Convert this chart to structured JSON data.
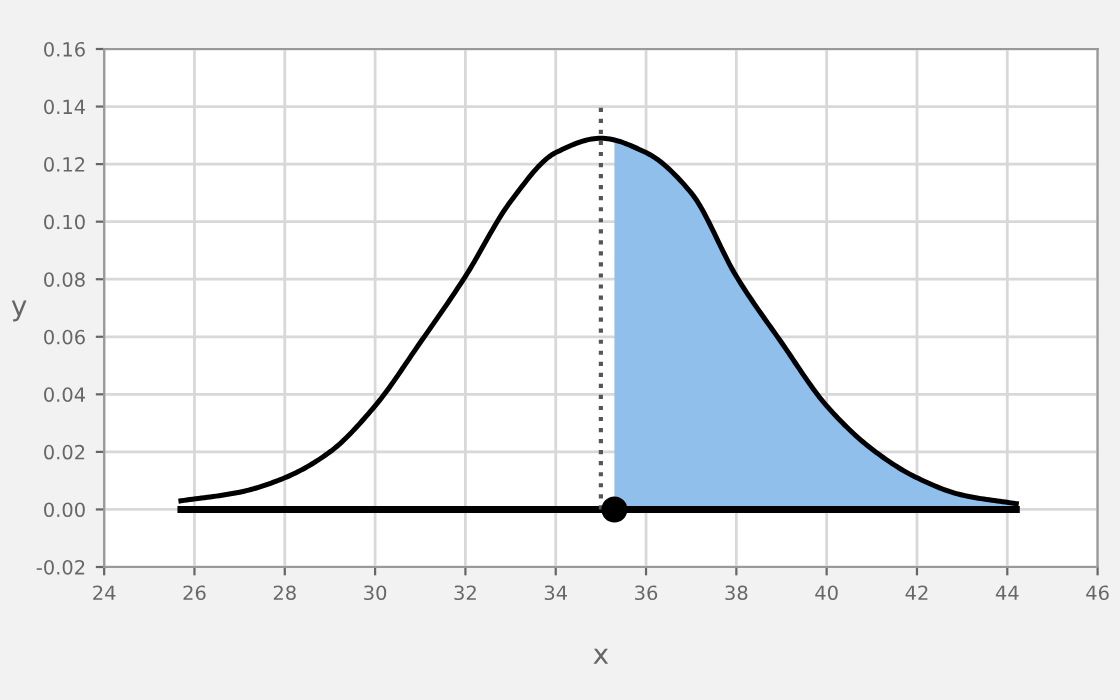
{
  "chart_data": {
    "type": "line",
    "xlabel": "x",
    "ylabel": "y",
    "xlim": [
      24,
      46
    ],
    "ylim": [
      -0.02,
      0.16
    ],
    "xticks": [
      24,
      26,
      28,
      30,
      32,
      34,
      36,
      38,
      40,
      42,
      44,
      46
    ],
    "yticks": [
      {
        "value": -0.02,
        "label": "-0.02"
      },
      {
        "value": 0,
        "label": "0.00"
      },
      {
        "value": 0.02,
        "label": "0.02"
      },
      {
        "value": 0.04,
        "label": "0.04"
      },
      {
        "value": 0.06,
        "label": "0.06"
      },
      {
        "value": 0.08,
        "label": "0.08"
      },
      {
        "value": 0.1,
        "label": "0.10"
      },
      {
        "value": 0.12,
        "label": "0.12"
      },
      {
        "value": 0.14,
        "label": "0.14"
      },
      {
        "value": 0.16,
        "label": "0.16"
      }
    ],
    "grid": true,
    "series": [
      {
        "type": "area",
        "color": "#8fbfea",
        "x": [
          35.3,
          36,
          37,
          38,
          39,
          40,
          41,
          42,
          43,
          44.2
        ],
        "values": [
          0.128,
          0.124,
          0.11,
          0.081,
          0.058,
          0.036,
          0.021,
          0.011,
          0.005,
          0.002
        ]
      },
      {
        "color": "#000000",
        "x": [
          25.7,
          27,
          28,
          29,
          30,
          31,
          32,
          33,
          34,
          35,
          36,
          37,
          38,
          39,
          40,
          41,
          42,
          43,
          44.2
        ],
        "values": [
          0.003,
          0.006,
          0.011,
          0.02,
          0.036,
          0.058,
          0.081,
          0.107,
          0.124,
          0.129,
          0.124,
          0.11,
          0.081,
          0.058,
          0.036,
          0.021,
          0.011,
          0.005,
          0.002
        ]
      },
      {
        "type": "line",
        "color": "#000000",
        "x": [
          25.7,
          44.2
        ],
        "values": [
          0,
          0
        ]
      },
      {
        "type": "line",
        "color": "#555555",
        "line_style": "dotted",
        "x": [
          35,
          35
        ],
        "values": [
          0,
          0.141
        ]
      },
      {
        "type": "scatter",
        "color": "#000000",
        "marker": "circle",
        "x": [
          35.3
        ],
        "values": [
          0
        ]
      }
    ]
  }
}
